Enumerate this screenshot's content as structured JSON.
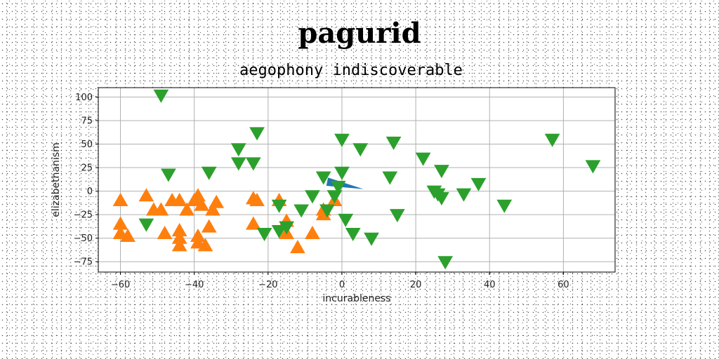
{
  "chart_data": {
    "type": "scatter",
    "title": "pagurid",
    "subtitle": "aegophony indiscoverable",
    "xlabel": "incurableness",
    "ylabel": "elizabethanism",
    "xlim": [
      -66,
      74
    ],
    "ylim": [
      -86,
      110
    ],
    "xticks": [
      -60,
      -40,
      -20,
      0,
      20,
      40,
      60
    ],
    "yticks": [
      -75,
      -50,
      -25,
      0,
      25,
      50,
      75,
      100
    ],
    "grid": true,
    "series": [
      {
        "marker": "arrow",
        "color": "#1f77b4",
        "points": [
          [
            -4,
            10
          ],
          [
            6,
            2
          ]
        ]
      },
      {
        "marker": "triangle-up",
        "color": "#ff7f0e",
        "points": [
          [
            -60,
            -10
          ],
          [
            -60,
            -35
          ],
          [
            -60,
            -45
          ],
          [
            -58,
            -48
          ],
          [
            -53,
            -5
          ],
          [
            -51,
            -20
          ],
          [
            -49,
            -20
          ],
          [
            -48,
            -45
          ],
          [
            -46,
            -10
          ],
          [
            -44,
            -10
          ],
          [
            -44,
            -42
          ],
          [
            -44,
            -50
          ],
          [
            -44,
            -58
          ],
          [
            -42,
            -20
          ],
          [
            -40,
            -10
          ],
          [
            -39,
            -5
          ],
          [
            -39,
            -48
          ],
          [
            -39,
            -55
          ],
          [
            -38,
            -15
          ],
          [
            -37,
            -58
          ],
          [
            -36,
            -38
          ],
          [
            -35,
            -20
          ],
          [
            -34,
            -12
          ],
          [
            -24,
            -8
          ],
          [
            -23,
            -10
          ],
          [
            -24,
            -35
          ],
          [
            -17,
            -10
          ],
          [
            -15,
            -32
          ],
          [
            -15,
            -45
          ],
          [
            -12,
            -60
          ],
          [
            -8,
            -45
          ],
          [
            -5,
            -20
          ],
          [
            -5,
            -25
          ],
          [
            -2,
            -10
          ]
        ]
      },
      {
        "marker": "triangle-down",
        "color": "#2ca02c",
        "points": [
          [
            -49,
            102
          ],
          [
            -47,
            18
          ],
          [
            -53,
            -35
          ],
          [
            -36,
            20
          ],
          [
            -28,
            45
          ],
          [
            -28,
            30
          ],
          [
            -24,
            30
          ],
          [
            -23,
            62
          ],
          [
            -21,
            -45
          ],
          [
            -17,
            -15
          ],
          [
            -17,
            -42
          ],
          [
            -15,
            -38
          ],
          [
            -11,
            -20
          ],
          [
            -8,
            -5
          ],
          [
            -5,
            15
          ],
          [
            -4,
            -20
          ],
          [
            -2,
            -5
          ],
          [
            -1,
            5
          ],
          [
            0,
            20
          ],
          [
            0,
            55
          ],
          [
            1,
            -30
          ],
          [
            3,
            -45
          ],
          [
            5,
            45
          ],
          [
            8,
            -50
          ],
          [
            13,
            15
          ],
          [
            14,
            52
          ],
          [
            15,
            -25
          ],
          [
            22,
            35
          ],
          [
            25,
            0
          ],
          [
            26,
            -3
          ],
          [
            27,
            22
          ],
          [
            27,
            -7
          ],
          [
            28,
            -75
          ],
          [
            33,
            -3
          ],
          [
            37,
            8
          ],
          [
            44,
            -15
          ],
          [
            57,
            55
          ],
          [
            68,
            27
          ]
        ]
      }
    ]
  }
}
